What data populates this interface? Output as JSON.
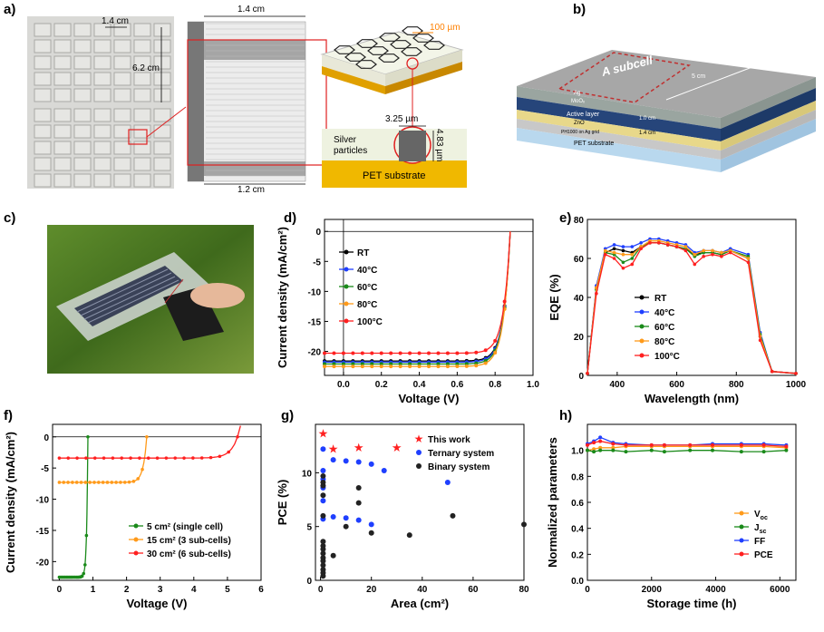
{
  "panel_labels": {
    "a": "a)",
    "b": "b)",
    "c": "c)",
    "d": "d)",
    "e": "e)",
    "f": "f)",
    "g": "g)",
    "h": "h)"
  },
  "panel_a": {
    "dim_1_4a": "1.4 cm",
    "dim_6_2": "6.2 cm",
    "dim_1_4b": "1.4 cm",
    "dim_1_2": "1.2 cm",
    "dim_100um": "100 µm",
    "dim_3_25": "3.25 µm",
    "dim_4_83": "4.83 µm",
    "silver": "Silver\nparticles",
    "silver_l1": "Silver",
    "silver_l2": "particles",
    "pet": "PET substrate"
  },
  "panel_b": {
    "subcell": "A subcell",
    "len": "5 cm",
    "ag": "Ag",
    "moox": "MoOₓ",
    "active": "Active layer",
    "zno": "ZnO",
    "ph": "PH1000 on Ag grid",
    "pet": "PET substrate",
    "w1": "1.0 cm",
    "w2": "1.4 cm"
  },
  "colors": {
    "black": "#000000",
    "blue": "#1f3fff",
    "green": "#1a8a1a",
    "orange": "#ff9a1a",
    "red": "#ff2020"
  },
  "chart_data": [
    {
      "id": "d",
      "type": "line",
      "xlabel": "Voltage (V)",
      "ylabel": "Current density (mA/cm²)",
      "xlim": [
        -0.1,
        1.0
      ],
      "ylim": [
        -24,
        2
      ],
      "xticks": [
        "0.0",
        "0.2",
        "0.4",
        "0.6",
        "0.8",
        "1.0"
      ],
      "yticks": [
        "0",
        "-5",
        "-10",
        "-15",
        "-20"
      ],
      "legend": "center-left",
      "series": [
        {
          "name": "RT",
          "color": "#000000",
          "jsc": -21.6,
          "voc": 0.88
        },
        {
          "name": "40°C",
          "color": "#1f3fff",
          "jsc": -21.8,
          "voc": 0.88
        },
        {
          "name": "60°C",
          "color": "#1a8a1a",
          "jsc": -22.1,
          "voc": 0.88
        },
        {
          "name": "80°C",
          "color": "#ff9a1a",
          "jsc": -22.5,
          "voc": 0.88
        },
        {
          "name": "100°C",
          "color": "#ff2020",
          "jsc": -20.3,
          "voc": 0.88
        }
      ]
    },
    {
      "id": "e",
      "type": "line",
      "xlabel": "Wavelength (nm)",
      "ylabel": "EQE (%)",
      "xlim": [
        300,
        1000
      ],
      "ylim": [
        0,
        80
      ],
      "xticks": [
        "400",
        "600",
        "800",
        "1000"
      ],
      "yticks": [
        "0",
        "20",
        "40",
        "60",
        "80"
      ],
      "legend": "center",
      "series": [
        {
          "name": "RT",
          "color": "#000000",
          "y": [
            1,
            45,
            63,
            65,
            64,
            63,
            66,
            68,
            68,
            67,
            66,
            65,
            62,
            63,
            63,
            62,
            64,
            60,
            20,
            2,
            1
          ]
        },
        {
          "name": "40°C",
          "color": "#1f3fff",
          "y": [
            1,
            46,
            65,
            67,
            66,
            66,
            68,
            70,
            70,
            69,
            68,
            67,
            63,
            64,
            64,
            63,
            65,
            62,
            22,
            2,
            1
          ]
        },
        {
          "name": "60°C",
          "color": "#1a8a1a",
          "y": [
            1,
            44,
            63,
            62,
            58,
            60,
            66,
            68,
            68,
            67,
            66,
            65,
            61,
            63,
            63,
            62,
            64,
            61,
            21,
            2,
            1
          ]
        },
        {
          "name": "80°C",
          "color": "#ff9a1a",
          "y": [
            1,
            45,
            64,
            63,
            62,
            62,
            66,
            69,
            69,
            68,
            67,
            66,
            62,
            64,
            64,
            63,
            64,
            60,
            20,
            2,
            1
          ]
        },
        {
          "name": "100°C",
          "color": "#ff2020",
          "y": [
            1,
            42,
            62,
            60,
            55,
            57,
            65,
            68,
            68,
            67,
            66,
            64,
            57,
            61,
            62,
            61,
            63,
            58,
            18,
            2,
            1
          ]
        }
      ],
      "x": [
        300,
        330,
        360,
        390,
        420,
        450,
        480,
        510,
        540,
        570,
        600,
        630,
        660,
        690,
        720,
        750,
        780,
        840,
        880,
        920,
        1000
      ]
    },
    {
      "id": "f",
      "type": "line",
      "xlabel": "Voltage (V)",
      "ylabel": "Current density (mA/cm²)",
      "xlim": [
        -0.2,
        6
      ],
      "ylim": [
        -23,
        2
      ],
      "xticks": [
        "0",
        "1",
        "2",
        "3",
        "4",
        "5",
        "6"
      ],
      "yticks": [
        "0",
        "-5",
        "-10",
        "-15",
        "-20"
      ],
      "legend": "bottom-center",
      "series": [
        {
          "name": "5 cm² (single cell)",
          "color": "#1a8a1a",
          "jsc": -22.5,
          "voc": 0.85
        },
        {
          "name": "15 cm²  (3 sub-cells)",
          "color": "#ff9a1a",
          "jsc": -7.3,
          "voc": 2.6
        },
        {
          "name": "30 cm²  (6 sub-cells)",
          "color": "#ff2020",
          "jsc": -3.4,
          "voc": 5.3
        }
      ]
    },
    {
      "id": "g",
      "type": "scatter",
      "xlabel": "Area (cm²)",
      "ylabel": "PCE (%)",
      "xlim": [
        -2,
        80
      ],
      "ylim": [
        0,
        14.5
      ],
      "xticks": [
        "0",
        "20",
        "40",
        "60",
        "80"
      ],
      "yticks": [
        "0",
        "5",
        "10"
      ],
      "legend": "top-right",
      "series": [
        {
          "name": "This work",
          "color": "#ff2020",
          "marker": "star",
          "points": [
            [
              1,
              13.6
            ],
            [
              5,
              12.2
            ],
            [
              15,
              12.3
            ],
            [
              30,
              12.3
            ]
          ]
        },
        {
          "name": "Ternary system",
          "color": "#1f3fff",
          "marker": "circle",
          "points": [
            [
              1,
              12.2
            ],
            [
              1,
              10.2
            ],
            [
              1,
              9.4
            ],
            [
              1,
              8.6
            ],
            [
              1,
              7.4
            ],
            [
              1,
              5.7
            ],
            [
              5,
              11.2
            ],
            [
              5,
              5.9
            ],
            [
              10,
              11.1
            ],
            [
              10,
              5.8
            ],
            [
              15,
              11.0
            ],
            [
              15,
              5.6
            ],
            [
              20,
              10.8
            ],
            [
              20,
              5.2
            ],
            [
              25,
              10.2
            ],
            [
              50,
              9.1
            ]
          ]
        },
        {
          "name": "Binary system",
          "color": "#222222",
          "marker": "circle",
          "points": [
            [
              1,
              9.7
            ],
            [
              1,
              9.1
            ],
            [
              1,
              8.8
            ],
            [
              1,
              7.9
            ],
            [
              1,
              6.0
            ],
            [
              1,
              3.6
            ],
            [
              1,
              3.2
            ],
            [
              1,
              2.9
            ],
            [
              1,
              2.5
            ],
            [
              1,
              2.1
            ],
            [
              1,
              1.8
            ],
            [
              1,
              1.4
            ],
            [
              1,
              1.0
            ],
            [
              1,
              0.7
            ],
            [
              1,
              0.4
            ],
            [
              5,
              2.3
            ],
            [
              10,
              5.0
            ],
            [
              15,
              8.6
            ],
            [
              15,
              7.2
            ],
            [
              20,
              4.4
            ],
            [
              35,
              4.2
            ],
            [
              52,
              6.0
            ],
            [
              80,
              5.2
            ]
          ]
        }
      ]
    },
    {
      "id": "h",
      "type": "line",
      "xlabel": "Storage time (h)",
      "ylabel": "Normalized parameters",
      "xlim": [
        0,
        6500
      ],
      "ylim": [
        0,
        1.2
      ],
      "xticks": [
        "0",
        "2000",
        "4000",
        "6000"
      ],
      "yticks": [
        "0.0",
        "0.2",
        "0.4",
        "0.6",
        "0.8",
        "1.0"
      ],
      "legend": "bottom-right",
      "x": [
        0,
        200,
        400,
        800,
        1200,
        2000,
        2400,
        3200,
        3900,
        4800,
        5500,
        6200
      ],
      "series": [
        {
          "name": "V",
          "sub": "oc",
          "color": "#ff9a1a",
          "y": [
            1.0,
            1.01,
            1.02,
            1.02,
            1.03,
            1.03,
            1.03,
            1.03,
            1.03,
            1.03,
            1.03,
            1.02
          ]
        },
        {
          "name": "J",
          "sub": "sc",
          "color": "#1a8a1a",
          "y": [
            1.0,
            0.99,
            1.0,
            1.0,
            0.99,
            1.0,
            0.99,
            1.0,
            1.0,
            0.99,
            0.99,
            1.0
          ]
        },
        {
          "name": "FF",
          "sub": "",
          "color": "#1f3fff",
          "y": [
            1.05,
            1.07,
            1.1,
            1.06,
            1.05,
            1.04,
            1.04,
            1.04,
            1.05,
            1.05,
            1.05,
            1.04
          ]
        },
        {
          "name": "PCE",
          "sub": "",
          "color": "#ff2020",
          "y": [
            1.04,
            1.06,
            1.07,
            1.05,
            1.04,
            1.04,
            1.04,
            1.04,
            1.04,
            1.04,
            1.04,
            1.03
          ]
        }
      ]
    }
  ]
}
